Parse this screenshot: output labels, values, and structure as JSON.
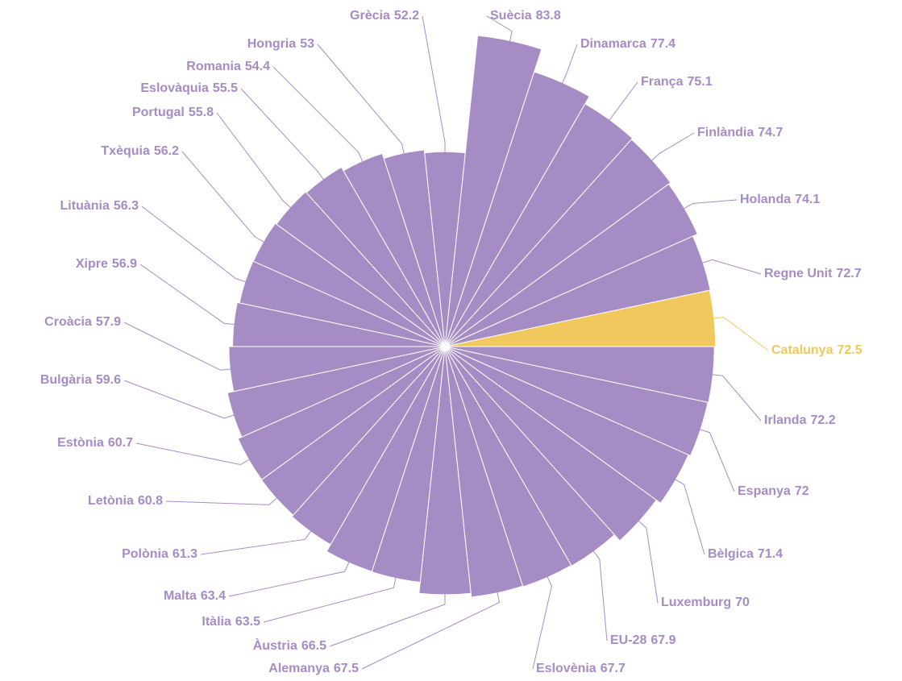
{
  "chart_data": {
    "type": "polar-area",
    "categories": [
      "Suècia",
      "Dinamarca",
      "França",
      "Finlàndia",
      "Holanda",
      "Regne Unit",
      "Catalunya",
      "Irlanda",
      "Espanya",
      "Bèlgica",
      "Luxemburg",
      "EU-28",
      "Eslovènia",
      "Alemanya",
      "Àustria",
      "Itàlia",
      "Malta",
      "Polònia",
      "Letònia",
      "Estònia",
      "Bulgària",
      "Croàcia",
      "Xipre",
      "Lituània",
      "Txèquia",
      "Portugal",
      "Eslovàquia",
      "Romania",
      "Hongria",
      "Grècia"
    ],
    "values": [
      83.8,
      77.4,
      75.1,
      74.7,
      74.1,
      72.7,
      72.5,
      72.2,
      72,
      71.4,
      70,
      67.9,
      67.7,
      67.5,
      66.5,
      63.5,
      63.4,
      61.3,
      60.8,
      60.7,
      59.6,
      57.9,
      56.9,
      56.3,
      56.2,
      55.8,
      55.5,
      54.4,
      53,
      52.2
    ],
    "colors": [
      "#a58cc5",
      "#a58cc5",
      "#a58cc5",
      "#a58cc5",
      "#a58cc5",
      "#a58cc5",
      "#f0c85e",
      "#a58cc5",
      "#a58cc5",
      "#a58cc5",
      "#a58cc5",
      "#a58cc5",
      "#a58cc5",
      "#a58cc5",
      "#a58cc5",
      "#a58cc5",
      "#a58cc5",
      "#a58cc5",
      "#a58cc5",
      "#a58cc5",
      "#a58cc5",
      "#a58cc5",
      "#a58cc5",
      "#a58cc5",
      "#a58cc5",
      "#a58cc5",
      "#a58cc5",
      "#a58cc5",
      "#a58cc5",
      "#a58cc5"
    ]
  }
}
